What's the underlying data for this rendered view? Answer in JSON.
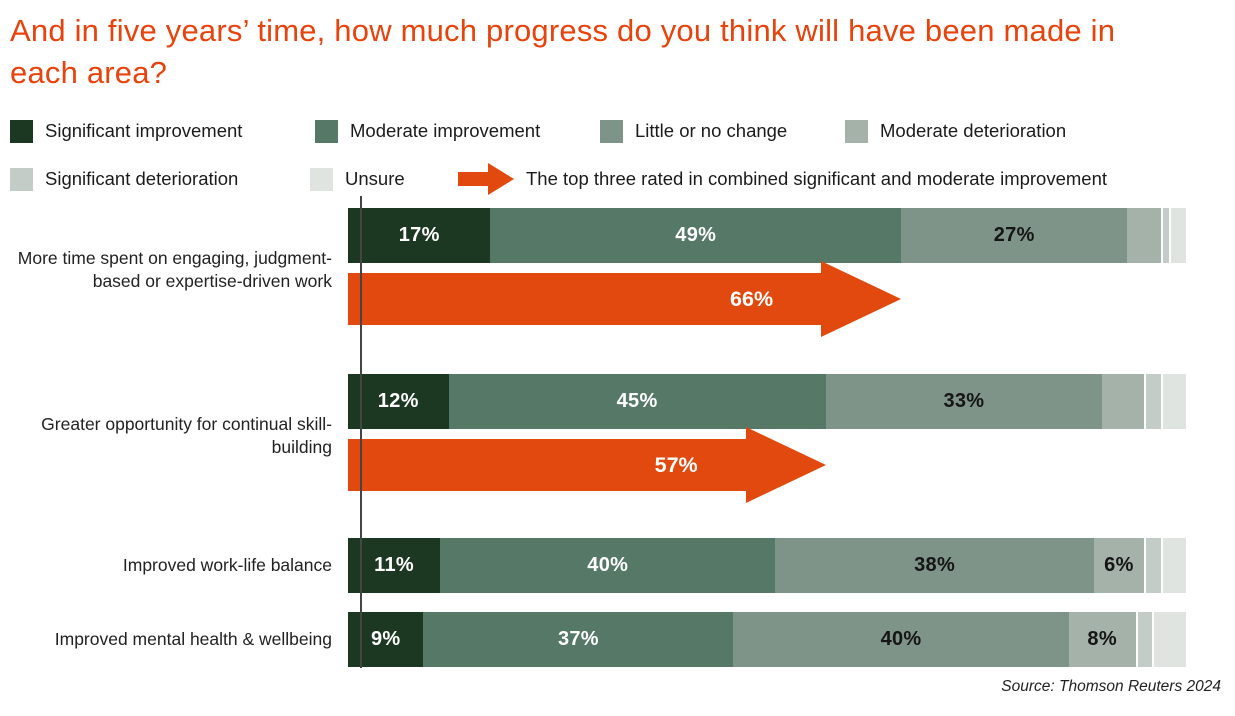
{
  "title": "And in five years’ time, how much progress do you think will have been made in each area?",
  "colors": {
    "title": "#e8420d",
    "arrow": "#e2490e",
    "axis": "#454545",
    "series": [
      "#1c3823",
      "#567867",
      "#7f9489",
      "#a5b2aa",
      "#c4ccc7",
      "#e0e4e1"
    ],
    "label_on_dark": "#ffffff",
    "label_on_light": "#151515"
  },
  "legend": {
    "items": [
      "Significant improvement",
      "Moderate improvement",
      "Little or no change",
      "Moderate deterioration",
      "Significant deterioration",
      "Unsure"
    ],
    "arrow_note": "The top three rated in combined significant and moderate improvement"
  },
  "chart_data": {
    "type": "bar",
    "orientation": "horizontal",
    "stacked": true,
    "xlim": [
      0,
      100
    ],
    "series_names": [
      "Significant improvement",
      "Moderate improvement",
      "Little or no change",
      "Moderate deterioration",
      "Significant deterioration",
      "Unsure"
    ],
    "categories": [
      "More time spent on engaging, judgment-based or  expertise-driven work",
      "Greater opportunity for continual skill-building",
      "Improved work-life balance",
      "Improved mental health & wellbeing"
    ],
    "rows": [
      {
        "category": "More time spent on engaging, judgment-based or  expertise-driven work",
        "values": [
          17,
          49,
          27,
          4,
          1,
          2
        ],
        "shown_labels": [
          "17%",
          "49%",
          "27%",
          "",
          "",
          ""
        ],
        "arrow": {
          "value": 66,
          "label": "66%"
        }
      },
      {
        "category": "Greater opportunity for continual skill-building",
        "values": [
          12,
          45,
          33,
          5,
          2,
          3
        ],
        "shown_labels": [
          "12%",
          "45%",
          "33%",
          "",
          "",
          ""
        ],
        "arrow": {
          "value": 57,
          "label": "57%"
        }
      },
      {
        "category": "Improved work-life balance",
        "values": [
          11,
          40,
          38,
          6,
          2,
          3
        ],
        "shown_labels": [
          "11%",
          "40%",
          "38%",
          "6%",
          "",
          ""
        ],
        "arrow": null
      },
      {
        "category": "Improved mental health & wellbeing",
        "values": [
          9,
          37,
          40,
          8,
          2,
          4
        ],
        "shown_labels": [
          "9%",
          "37%",
          "40%",
          "8%",
          "",
          ""
        ],
        "arrow": null
      }
    ],
    "annotation_note": "The top three rated in combined significant and moderate improvement"
  },
  "source": "Source: Thomson Reuters 2024"
}
